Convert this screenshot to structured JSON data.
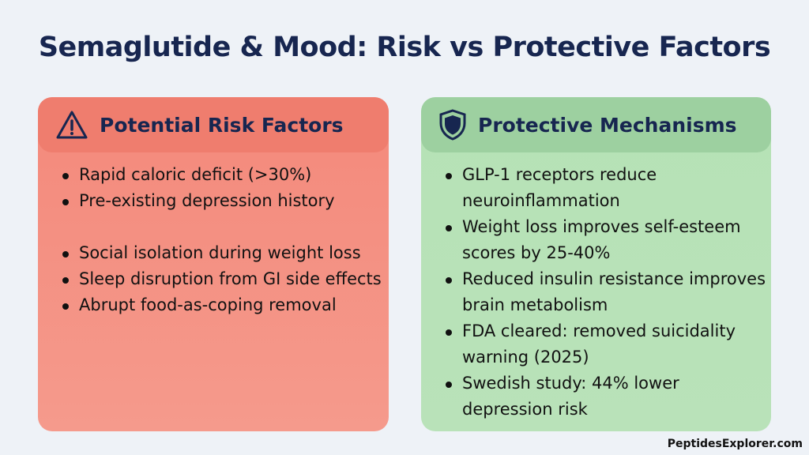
{
  "title": "Semaglutide & Mood: Risk vs Protective Factors",
  "risk": {
    "heading": "Potential Risk Factors",
    "icon": "warning-icon",
    "color": "#f4897b",
    "items": [
      "Rapid caloric deficit (>30%)",
      "Pre-existing depression history",
      "Social isolation during weight loss",
      "Sleep disruption from GI side effects",
      "Abrupt food-as-coping removal"
    ]
  },
  "protective": {
    "heading": "Protective Mechanisms",
    "icon": "shield-icon",
    "color": "#b6e2b6",
    "items": [
      "GLP-1 receptors reduce neuroinflammation",
      "Weight loss improves self-esteem scores by 25-40%",
      "Reduced insulin resistance improves brain metabolism",
      "FDA cleared: removed suicidality warning (2025)",
      "Swedish study: 44% lower depression risk"
    ]
  },
  "brand": "PeptidesExplorer.com"
}
